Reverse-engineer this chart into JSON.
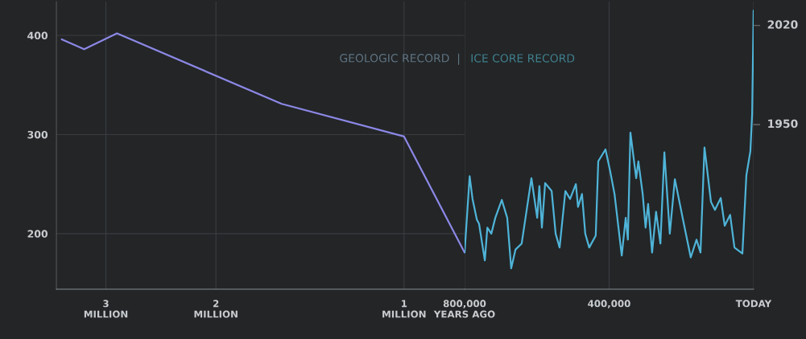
{
  "chart_data": [
    {
      "type": "line",
      "x": [
        3.53,
        3.25,
        2.88,
        1.57,
        1.0,
        0.8
      ],
      "log": "x",
      "series": [
        {
          "color": "#8c88e6",
          "values": [
            396,
            386,
            402,
            331,
            298,
            181
          ]
        }
      ],
      "xlim": [
        3.6,
        0.8
      ],
      "xticks": [
        {
          "value": 3,
          "label": "3\nMILLION"
        },
        {
          "value": 2,
          "label": "2\nMILLION"
        },
        {
          "value": 1,
          "label": "1\nMILLION"
        }
      ],
      "ylim": [
        144,
        434
      ],
      "yticks": [
        200,
        300,
        400
      ],
      "grid": true,
      "annotations": [
        "GEOLOGIC RECORD  |"
      ]
    },
    {
      "type": "line",
      "x": [
        800000,
        786000,
        778000,
        766000,
        760000,
        744000,
        737000,
        726000,
        715000,
        697000,
        682000,
        671000,
        659000,
        642000,
        615000,
        599000,
        593000,
        586000,
        577000,
        559000,
        548000,
        537000,
        521000,
        508000,
        492000,
        486000,
        475000,
        466000,
        455000,
        437000,
        430000,
        410000,
        397000,
        385000,
        365000,
        354000,
        348000,
        341000,
        325000,
        319000,
        307000,
        299000,
        292000,
        281000,
        270000,
        258000,
        247000,
        232000,
        218000,
        192000,
        174000,
        158000,
        147000,
        136000,
        118000,
        107000,
        91000,
        80000,
        65000,
        53000,
        31000,
        20000,
        9000,
        4000,
        0
      ],
      "series": [
        {
          "color": "#4fb4d8",
          "values": [
            181,
            258,
            235,
            214,
            210,
            173,
            206,
            200,
            216,
            234,
            216,
            165,
            184,
            190,
            256,
            216,
            248,
            206,
            251,
            243,
            200,
            186,
            243,
            235,
            250,
            227,
            240,
            200,
            186,
            198,
            273,
            285,
            263,
            240,
            178,
            216,
            194,
            302,
            256,
            273,
            240,
            206,
            230,
            181,
            222,
            190,
            282,
            200,
            255,
            208,
            176,
            194,
            181,
            287,
            232,
            224,
            236,
            208,
            219,
            186,
            180,
            259,
            283,
            321,
            425
          ]
        }
      ],
      "xlim": [
        800000,
        0
      ],
      "xticks": [
        {
          "value": 800000,
          "label": "800,000\nYEARS AGO"
        },
        {
          "value": 400000,
          "label": "400,000"
        },
        {
          "value": 0,
          "label": "TODAY"
        }
      ],
      "ylim": [
        144,
        434
      ],
      "grid": true,
      "tick_labels": "x",
      "annotations": [
        "ICE CORE RECORD",
        {
          "text": "2020",
          "x": 0,
          "y": 410
        },
        {
          "text": "1950",
          "x": 0,
          "y": 310
        }
      ]
    }
  ]
}
